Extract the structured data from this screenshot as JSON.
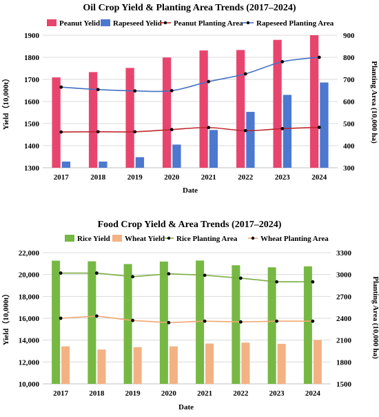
{
  "chart_data": [
    {
      "type": "bar",
      "title": "Oil Crop Yield & Planting Area Trends (2017–2024)",
      "xlabel": "Date",
      "ylabel": "Yield（10,000t）",
      "y2label": "Planting Area (10,000 ha)",
      "categories": [
        "2017",
        "2018",
        "2019",
        "2020",
        "2021",
        "2022",
        "2023",
        "2024"
      ],
      "ylim": [
        1300,
        1900
      ],
      "y2lim": [
        300,
        900
      ],
      "yticks": [
        "1300",
        "1400",
        "1500",
        "1600",
        "1700",
        "1800",
        "1900"
      ],
      "y2ticks": [
        "300",
        "400",
        "500",
        "600",
        "700",
        "800",
        "900"
      ],
      "grid": true,
      "legend_position": "top",
      "bar_series": [
        {
          "name": "Peanut Yelid",
          "color": "#E8456E",
          "values": [
            1709,
            1733,
            1752,
            1799,
            1831,
            1833,
            1879,
            1900
          ]
        },
        {
          "name": "Rapeseed Yelid",
          "color": "#4C78D0",
          "values": [
            1328,
            1328,
            1348,
            1405,
            1471,
            1553,
            1630,
            1686
          ]
        }
      ],
      "line_series": [
        {
          "name": "Peanut Planting Area",
          "color": "#C0262C",
          "axis": "right",
          "values": [
            462,
            463,
            463,
            473,
            482,
            468,
            477,
            483
          ]
        },
        {
          "name": "Rapeseed Planting Area",
          "color": "#4472C4",
          "axis": "right",
          "values": [
            665,
            654,
            648,
            649,
            690,
            725,
            780,
            800
          ]
        }
      ]
    },
    {
      "type": "bar",
      "title": "Food Crop Yield & Area Trends (2017–2024)",
      "xlabel": "Date",
      "ylabel": "Yield（10,000t）",
      "y2label": "Planting Area (10,000 ha)",
      "categories": [
        "2017",
        "2018",
        "2019",
        "2020",
        "2021",
        "2022",
        "2023",
        "2024"
      ],
      "ylim": [
        10000,
        22000
      ],
      "y2lim": [
        1500,
        3300
      ],
      "yticks": [
        "10,000",
        "12,000",
        "14,000",
        "16,000",
        "18,000",
        "20,000",
        "22,000"
      ],
      "y2ticks": [
        "1500",
        "1800",
        "2100",
        "2400",
        "2700",
        "3000",
        "3300"
      ],
      "grid": true,
      "legend_position": "top",
      "bar_series": [
        {
          "name": "Rice Yield",
          "color": "#76B843",
          "values": [
            21270,
            21210,
            20960,
            21190,
            21280,
            20850,
            20660,
            20750
          ]
        },
        {
          "name": "Wheat Yield",
          "color": "#F4B183",
          "values": [
            13430,
            13140,
            13360,
            13430,
            13690,
            13770,
            13660,
            14010
          ]
        }
      ],
      "line_series": [
        {
          "name": "Rice Planting Area",
          "color": "#7BAE41",
          "axis": "right",
          "values": [
            3020,
            3020,
            2970,
            3010,
            2990,
            2950,
            2900,
            2900
          ]
        },
        {
          "name": "Wheat Planting Area",
          "color": "#F0A672",
          "axis": "right",
          "values": [
            2400,
            2430,
            2370,
            2340,
            2360,
            2350,
            2360,
            2360
          ]
        }
      ]
    }
  ]
}
